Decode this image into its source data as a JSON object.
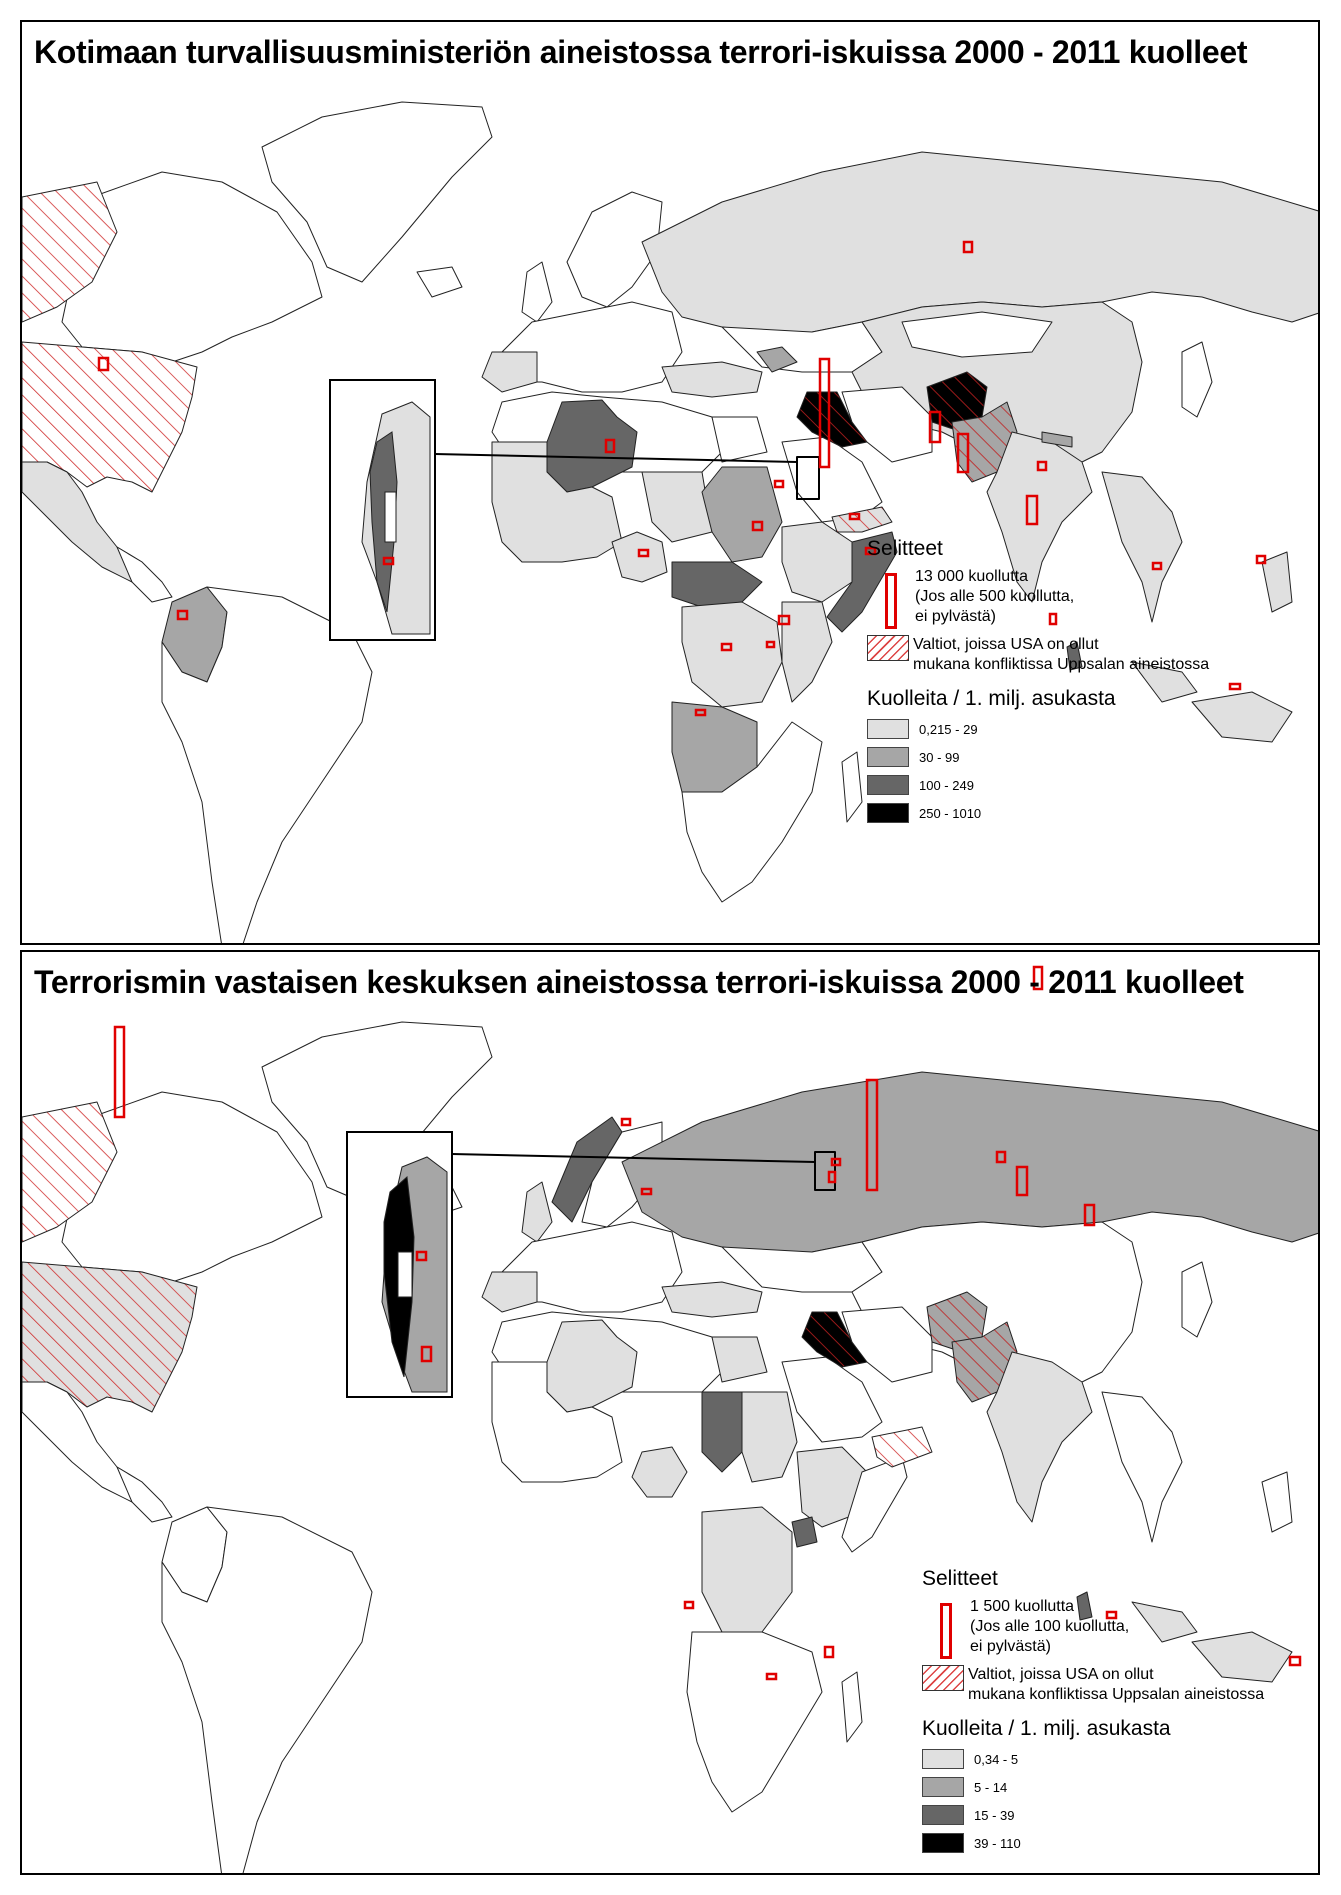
{
  "maps": [
    {
      "title": "Kotimaan turvallisuusministeriön aineistossa terrori-iskuissa 2000 - 2011 kuolleet",
      "legend": {
        "heading": "Selitteet",
        "bar_label_line1": "13 000 kuollutta",
        "bar_label_line2": "(Jos alle 500 kuollutta,",
        "bar_label_line3": "ei pylvästä)",
        "hatch_label_line1": "Valtiot, joissa USA on ollut",
        "hatch_label_line2": "mukana konfliktissa Uppsalan aineistossa",
        "classes_heading": "Kuolleita / 1. milj. asukasta",
        "classes": [
          {
            "label": "0,215 - 29",
            "color": "#e0e0e0"
          },
          {
            "label": "30 - 99",
            "color": "#a6a6a6"
          },
          {
            "label": "100 - 249",
            "color": "#666666"
          },
          {
            "label": "250 - 1010",
            "color": "#000000"
          }
        ]
      }
    },
    {
      "title": "Terrorismin vastaisen keskuksen aineistossa terrori-iskuissa 2000 - 2011 kuolleet",
      "legend": {
        "heading": "Selitteet",
        "bar_label_line1": "1 500 kuollutta",
        "bar_label_line2": "(Jos alle 100 kuollutta,",
        "bar_label_line3": "ei pylvästä)",
        "hatch_label_line1": "Valtiot, joissa USA on ollut",
        "hatch_label_line2": "mukana konfliktissa Uppsalan aineistossa",
        "classes_heading": "Kuolleita / 1. milj. asukasta",
        "classes": [
          {
            "label": "0,34 - 5",
            "color": "#e0e0e0"
          },
          {
            "label": "5 - 14",
            "color": "#a6a6a6"
          },
          {
            "label": "15 - 39",
            "color": "#666666"
          },
          {
            "label": "39 - 110",
            "color": "#000000"
          }
        ]
      }
    }
  ]
}
